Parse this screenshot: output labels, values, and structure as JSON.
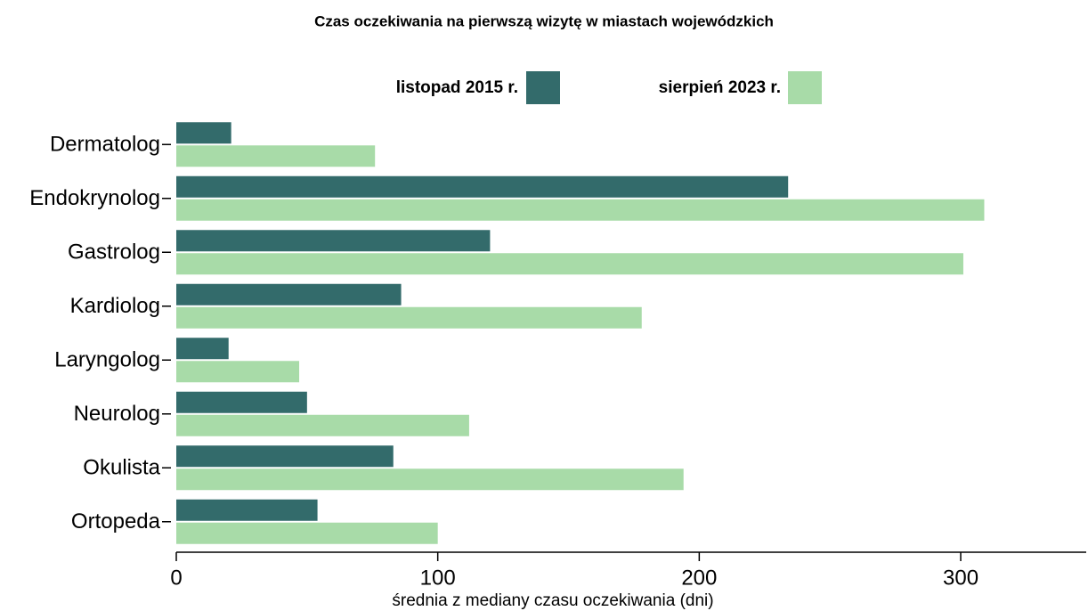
{
  "chart_data": {
    "type": "bar",
    "orientation": "horizontal",
    "title": "Czas oczekiwania na pierwszą wizytę w miastach wojewódzkich",
    "x_label": "średnia z mediany czasu oczekiwania (dni)",
    "categories": [
      "Dermatolog",
      "Endokrynolog",
      "Gastrolog",
      "Kardiolog",
      "Laryngolog",
      "Neurolog",
      "Okulista",
      "Ortopeda"
    ],
    "series": [
      {
        "name": "listopad 2015 r.",
        "color": "#336b6b",
        "values": [
          21,
          234,
          120,
          86,
          20,
          50,
          83,
          54
        ]
      },
      {
        "name": "sierpień 2023 r.",
        "color": "#a8dba8",
        "values": [
          76,
          309,
          301,
          178,
          47,
          112,
          194,
          100
        ]
      }
    ],
    "xlim": [
      0,
      348
    ],
    "xticks": [
      0,
      100,
      200,
      300
    ],
    "grid": false,
    "legend": "top"
  }
}
